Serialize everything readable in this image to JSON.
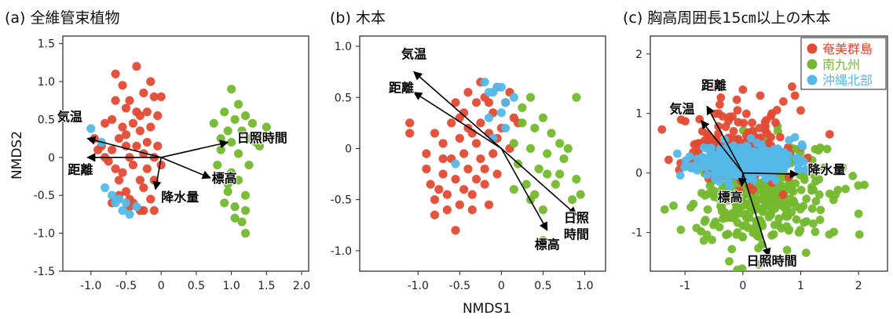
{
  "shared": {
    "xlabel": "NMDS1",
    "ylabel": "NMDS2"
  },
  "chart_data": [
    {
      "type": "scatter",
      "title": "(a) 全維管束植物",
      "xlabel": "NMDS1",
      "ylabel": "NMDS2",
      "xlim": [
        -1.4,
        2.1
      ],
      "ylim": [
        -1.5,
        1.6
      ],
      "xticks": [
        -1.0,
        -0.5,
        0.0,
        0.5,
        1.0,
        1.5,
        2.0
      ],
      "xtick_labels": [
        "-1.0",
        "-0.5",
        "0",
        "0.5",
        "1.0",
        "1.5",
        "2.0"
      ],
      "yticks": [
        -1.5,
        -1.0,
        -0.5,
        0.0,
        0.5,
        1.0,
        1.5
      ],
      "ytick_labels": [
        "-1.5",
        "-1.0",
        "-0.5",
        "0",
        "0.5",
        "1.0",
        "1.5"
      ],
      "grid": false,
      "series": [
        {
          "name": "奄美群島",
          "color": "#e34a33",
          "points": [
            [
              -0.95,
              0.25
            ],
            [
              -0.9,
              0.1
            ],
            [
              -0.8,
              0.0
            ],
            [
              -0.75,
              -0.05
            ],
            [
              -0.7,
              0.5
            ],
            [
              -0.7,
              0.1
            ],
            [
              -0.65,
              -0.15
            ],
            [
              -0.6,
              -0.3
            ],
            [
              -0.6,
              0.25
            ],
            [
              -0.55,
              0.4
            ],
            [
              -0.55,
              0.95
            ],
            [
              -0.5,
              0.65
            ],
            [
              -0.5,
              0.3
            ],
            [
              -0.5,
              -0.45
            ],
            [
              -0.45,
              0.75
            ],
            [
              -0.45,
              0.0
            ],
            [
              -0.45,
              -0.55
            ],
            [
              -0.4,
              0.45
            ],
            [
              -0.4,
              -0.1
            ],
            [
              -0.4,
              -0.6
            ],
            [
              -0.35,
              1.2
            ],
            [
              -0.35,
              0.6
            ],
            [
              -0.35,
              0.15
            ],
            [
              -0.3,
              0.35
            ],
            [
              -0.3,
              -0.3
            ],
            [
              -0.3,
              -0.7
            ],
            [
              -0.25,
              0.85
            ],
            [
              -0.25,
              0.05
            ],
            [
              -0.25,
              -0.4
            ],
            [
              -0.2,
              0.6
            ],
            [
              -0.2,
              0.2
            ],
            [
              -0.2,
              -0.15
            ],
            [
              -0.15,
              1.0
            ],
            [
              -0.15,
              0.4
            ],
            [
              -0.15,
              -0.55
            ],
            [
              -0.1,
              0.8
            ],
            [
              -0.1,
              0.0
            ],
            [
              -0.1,
              -0.3
            ],
            [
              -0.05,
              0.15
            ],
            [
              0.0,
              0.8
            ],
            [
              0.0,
              -0.1
            ],
            [
              -0.6,
              -0.5
            ],
            [
              -0.65,
              0.75
            ],
            [
              -0.8,
              0.45
            ],
            [
              -0.45,
              -0.65
            ],
            [
              -0.7,
              -0.6
            ],
            [
              -0.5,
              0.15
            ],
            [
              -0.55,
              -0.2
            ],
            [
              -0.85,
              0.15
            ],
            [
              -0.3,
              0.55
            ],
            [
              -0.05,
              0.55
            ],
            [
              -0.65,
              1.1
            ],
            [
              -0.25,
              -0.7
            ],
            [
              -0.1,
              -0.7
            ]
          ]
        },
        {
          "name": "南九州",
          "color": "#74b82e",
          "points": [
            [
              0.75,
              0.45
            ],
            [
              0.8,
              -0.1
            ],
            [
              0.85,
              0.25
            ],
            [
              0.9,
              0.6
            ],
            [
              0.95,
              0.35
            ],
            [
              0.95,
              -0.45
            ],
            [
              1.0,
              0.9
            ],
            [
              1.0,
              0.2
            ],
            [
              1.0,
              -0.2
            ],
            [
              1.05,
              0.5
            ],
            [
              1.05,
              -0.65
            ],
            [
              1.1,
              0.05
            ],
            [
              1.1,
              -0.3
            ],
            [
              1.15,
              0.35
            ],
            [
              1.15,
              -0.85
            ],
            [
              1.2,
              0.55
            ],
            [
              1.2,
              -0.5
            ],
            [
              1.25,
              -0.1
            ],
            [
              1.3,
              0.45
            ],
            [
              1.35,
              0.2
            ],
            [
              1.4,
              0.15
            ],
            [
              1.5,
              0.4
            ],
            [
              0.9,
              -0.6
            ],
            [
              1.2,
              -1.0
            ],
            [
              1.1,
              0.7
            ],
            [
              0.85,
              0.1
            ],
            [
              1.25,
              0.25
            ],
            [
              1.2,
              -0.7
            ],
            [
              0.95,
              -0.35
            ],
            [
              1.05,
              -0.8
            ]
          ]
        },
        {
          "name": "沖縄北部",
          "color": "#55b8e8",
          "points": [
            [
              -1.0,
              0.38
            ],
            [
              -0.85,
              0.2
            ],
            [
              -0.8,
              -0.4
            ],
            [
              -0.7,
              -0.5
            ],
            [
              -0.65,
              -0.6
            ],
            [
              -0.6,
              -0.55
            ],
            [
              -0.55,
              -0.7
            ],
            [
              -0.45,
              -0.75
            ],
            [
              -0.35,
              -0.65
            ],
            [
              -0.5,
              -0.6
            ]
          ]
        }
      ],
      "vectors": [
        {
          "label": "気温",
          "x": -1.05,
          "y": 0.25
        },
        {
          "label": "距離",
          "x": -1.05,
          "y": 0.0
        },
        {
          "label": "日照時間",
          "x": 0.95,
          "y": 0.2
        },
        {
          "label": "標高",
          "x": 0.7,
          "y": -0.27
        },
        {
          "label": "降水量",
          "x": -0.08,
          "y": -0.42
        }
      ]
    },
    {
      "type": "scatter",
      "title": "(b) 木本",
      "xlabel": "NMDS1",
      "ylabel": "",
      "xlim": [
        -1.7,
        1.25
      ],
      "ylim": [
        -1.2,
        1.1
      ],
      "xticks": [
        -1.0,
        -0.5,
        0.0,
        0.5,
        1.0
      ],
      "xtick_labels": [
        "-1.0",
        "-0.5",
        "0",
        "0.5",
        "1.0"
      ],
      "yticks": [
        -1.0,
        -0.5,
        0.0,
        0.5,
        1.0
      ],
      "ytick_labels": [
        "-1.0",
        "-0.5",
        "0",
        "0.5",
        "1.0"
      ],
      "grid": false,
      "series": [
        {
          "name": "奄美群島",
          "color": "#e34a33",
          "points": [
            [
              -1.1,
              0.25
            ],
            [
              -1.1,
              0.15
            ],
            [
              -0.9,
              -0.05
            ],
            [
              -0.9,
              -0.2
            ],
            [
              -0.85,
              -0.35
            ],
            [
              -0.8,
              0.15
            ],
            [
              -0.8,
              -0.5
            ],
            [
              -0.75,
              -0.4
            ],
            [
              -0.7,
              0.05
            ],
            [
              -0.7,
              -0.25
            ],
            [
              -0.65,
              -0.45
            ],
            [
              -0.6,
              0.25
            ],
            [
              -0.6,
              -0.1
            ],
            [
              -0.55,
              0.45
            ],
            [
              -0.55,
              -0.3
            ],
            [
              -0.55,
              -0.8
            ],
            [
              -0.5,
              0.1
            ],
            [
              -0.5,
              -0.55
            ],
            [
              -0.45,
              0.35
            ],
            [
              -0.45,
              -0.05
            ],
            [
              -0.45,
              -0.4
            ],
            [
              -0.4,
              0.55
            ],
            [
              -0.4,
              0.2
            ],
            [
              -0.4,
              -0.2
            ],
            [
              -0.35,
              -0.45
            ],
            [
              -0.3,
              0.45
            ],
            [
              -0.3,
              0.05
            ],
            [
              -0.3,
              -0.3
            ],
            [
              -0.25,
              0.65
            ],
            [
              -0.25,
              0.25
            ],
            [
              -0.25,
              -0.1
            ],
            [
              -0.2,
              0.5
            ],
            [
              -0.2,
              -0.35
            ],
            [
              -0.15,
              0.15
            ],
            [
              -0.15,
              -0.55
            ],
            [
              -0.1,
              0.35
            ],
            [
              -0.1,
              -0.05
            ],
            [
              -0.05,
              0.6
            ],
            [
              -0.05,
              -0.25
            ],
            [
              0.0,
              0.2
            ],
            [
              0.05,
              0.45
            ],
            [
              0.1,
              0.0
            ],
            [
              0.15,
              0.3
            ],
            [
              0.1,
              0.55
            ],
            [
              -0.35,
              -0.6
            ],
            [
              -0.65,
              -0.6
            ],
            [
              -0.7,
              -0.1
            ],
            [
              -0.5,
              0.3
            ],
            [
              -0.2,
              -0.2
            ],
            [
              -0.05,
              0.1
            ],
            [
              -0.15,
              0.45
            ],
            [
              0.2,
              0.25
            ],
            [
              -0.8,
              -0.65
            ],
            [
              -0.35,
              0.15
            ]
          ]
        },
        {
          "name": "南九州",
          "color": "#74b82e",
          "points": [
            [
              0.15,
              0.05
            ],
            [
              0.2,
              -0.15
            ],
            [
              0.25,
              0.25
            ],
            [
              0.3,
              -0.35
            ],
            [
              0.35,
              0.0
            ],
            [
              0.35,
              -0.5
            ],
            [
              0.4,
              0.2
            ],
            [
              0.45,
              -0.2
            ],
            [
              0.5,
              0.3
            ],
            [
              0.5,
              -0.6
            ],
            [
              0.55,
              -0.05
            ],
            [
              0.6,
              0.15
            ],
            [
              0.65,
              -0.35
            ],
            [
              0.7,
              0.05
            ],
            [
              0.75,
              -0.1
            ],
            [
              0.8,
              0.0
            ],
            [
              0.85,
              -0.5
            ],
            [
              0.9,
              0.5
            ],
            [
              0.9,
              -0.3
            ],
            [
              0.95,
              -0.45
            ],
            [
              0.5,
              -0.9
            ],
            [
              0.6,
              -0.95
            ],
            [
              0.4,
              -0.45
            ],
            [
              0.25,
              0.4
            ],
            [
              0.35,
              0.5
            ],
            [
              0.7,
              -0.25
            ],
            [
              0.15,
              -0.4
            ],
            [
              0.55,
              -0.25
            ]
          ]
        },
        {
          "name": "沖縄北部",
          "color": "#55b8e8",
          "points": [
            [
              -0.55,
              -0.15
            ],
            [
              -0.2,
              0.65
            ],
            [
              -0.1,
              0.55
            ],
            [
              -0.05,
              0.6
            ],
            [
              0.0,
              0.6
            ],
            [
              0.05,
              0.45
            ],
            [
              0.15,
              0.5
            ],
            [
              -0.15,
              0.3
            ],
            [
              0.0,
              0.35
            ],
            [
              -0.1,
              0.1
            ],
            [
              0.05,
              0.2
            ],
            [
              -0.15,
              0.55
            ]
          ]
        }
      ],
      "vectors": [
        {
          "label": "気温",
          "x": -1.05,
          "y": 0.75
        },
        {
          "label": "距離",
          "x": -1.05,
          "y": 0.55
        },
        {
          "label": "日照\n時間",
          "x": 0.9,
          "y": -0.65
        },
        {
          "label": "標高",
          "x": 0.55,
          "y": -0.8
        }
      ]
    },
    {
      "type": "scatter",
      "title": "(c) 胸高周囲長15㎝以上の木本",
      "xlabel": "",
      "ylabel": "",
      "xlim": [
        -1.6,
        2.5
      ],
      "ylim": [
        -1.65,
        2.3
      ],
      "xticks": [
        -1,
        0,
        1,
        2
      ],
      "xtick_labels": [
        "-1",
        "0",
        "1",
        "2"
      ],
      "yticks": [
        -1,
        0,
        1,
        2
      ],
      "ytick_labels": [
        "-1",
        "0",
        "1",
        "2"
      ],
      "grid": false,
      "legend": {
        "position": "top-right",
        "labels": [
          "奄美群島",
          "南九州",
          "沖縄北部"
        ]
      },
      "series": [
        {
          "name": "南九州",
          "color": "#74b82e",
          "cloud": {
            "cx": 0.3,
            "cy": -0.35,
            "sx": 0.55,
            "sy": 0.45,
            "n": 340,
            "seed": 7
          },
          "points": [
            [
              -1.2,
              -0.55
            ],
            [
              2.1,
              -0.2
            ],
            [
              1.5,
              -0.35
            ],
            [
              0.8,
              -0.95
            ],
            [
              0.5,
              -1.05
            ],
            [
              -0.3,
              -0.75
            ],
            [
              1.2,
              -0.6
            ],
            [
              -0.5,
              -0.3
            ],
            [
              1.9,
              -0.05
            ],
            [
              0.25,
              -1.0
            ]
          ]
        },
        {
          "name": "奄美群島",
          "color": "#e34a33",
          "cloud": {
            "cx": -0.05,
            "cy": 0.35,
            "sx": 0.45,
            "sy": 0.3,
            "n": 170,
            "seed": 3
          },
          "points": [
            [
              -0.55,
              1.45
            ],
            [
              -0.4,
              1.15
            ],
            [
              0.0,
              1.4
            ],
            [
              0.3,
              1.3
            ],
            [
              0.5,
              1.0
            ],
            [
              0.85,
              1.45
            ],
            [
              0.9,
              1.3
            ],
            [
              1.0,
              1.05
            ],
            [
              1.5,
              0.65
            ],
            [
              -0.35,
              0.95
            ],
            [
              0.7,
              1.2
            ],
            [
              -1.1,
              0.05
            ],
            [
              -0.7,
              0.7
            ]
          ]
        },
        {
          "name": "沖縄北部",
          "color": "#55b8e8",
          "cloud": {
            "cx": 0.05,
            "cy": 0.2,
            "sx": 0.42,
            "sy": 0.14,
            "n": 320,
            "seed": 11
          },
          "points": [
            [
              -0.65,
              0.25
            ],
            [
              -0.55,
              0.15
            ],
            [
              0.8,
              0.55
            ],
            [
              0.9,
              0.6
            ]
          ]
        }
      ],
      "vectors": [
        {
          "label": "気温",
          "x": -0.72,
          "y": 0.88
        },
        {
          "label": "距離",
          "x": -0.62,
          "y": 1.12
        },
        {
          "label": "降水量",
          "x": 0.95,
          "y": -0.02
        },
        {
          "label": "日照時間",
          "x": 0.45,
          "y": -1.4
        },
        {
          "label": "標高",
          "x": -0.02,
          "y": -0.22
        }
      ]
    }
  ]
}
